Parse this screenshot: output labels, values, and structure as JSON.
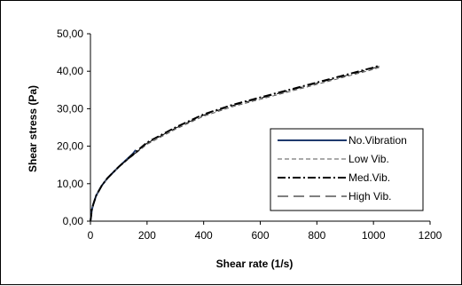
{
  "chart_data": {
    "type": "line",
    "xlabel": "Shear rate (1/s)",
    "ylabel": "Shear stress (Pa)",
    "xlim": [
      0,
      1200
    ],
    "ylim": [
      0,
      50
    ],
    "xticks": [
      "0",
      "200",
      "400",
      "600",
      "800",
      "1000",
      "1200"
    ],
    "yticks": [
      "0,00",
      "10,00",
      "20,00",
      "30,00",
      "40,00",
      "50,00"
    ],
    "grid": false,
    "legend_position": "center-right",
    "series": [
      {
        "name": "No.Vibration",
        "color": "#1f3a6e",
        "dash": "solid",
        "x": [
          0,
          5,
          10,
          20,
          40,
          60,
          100,
          150,
          160
        ],
        "y": [
          0,
          3.0,
          4.5,
          6.8,
          9.5,
          11.5,
          14.5,
          18.0,
          19.0
        ]
      },
      {
        "name": "Low Vib.",
        "color": "#555555",
        "dash": "dashed",
        "x": [
          0,
          5,
          10,
          20,
          40,
          60,
          100,
          150,
          200,
          300,
          400,
          500,
          600,
          700,
          800,
          900,
          1000,
          1020
        ],
        "y": [
          0,
          3.0,
          4.5,
          6.8,
          9.5,
          11.5,
          14.5,
          17.5,
          20.5,
          24.5,
          28.0,
          30.5,
          32.5,
          34.5,
          36.5,
          38.5,
          40.5,
          41.0
        ]
      },
      {
        "name": "Med.Vib.",
        "color": "#000000",
        "dash": "dashdot",
        "x": [
          0,
          5,
          10,
          20,
          40,
          60,
          100,
          150,
          200,
          300,
          400,
          500,
          600,
          700,
          800,
          900,
          1000,
          1020
        ],
        "y": [
          0,
          3.0,
          4.5,
          6.8,
          9.5,
          11.5,
          14.5,
          17.8,
          21.0,
          25.0,
          28.5,
          31.0,
          33.0,
          35.0,
          37.0,
          39.0,
          41.0,
          41.5
        ]
      },
      {
        "name": "High Vib.",
        "color": "#000000",
        "dash": "longdash",
        "x": [
          0,
          5,
          10,
          20,
          40,
          60,
          100,
          150,
          200,
          300,
          400,
          500,
          600,
          700,
          800,
          900,
          1000,
          1020
        ],
        "y": [
          0,
          3.0,
          4.5,
          6.8,
          9.5,
          11.5,
          14.5,
          17.6,
          20.8,
          24.8,
          28.3,
          30.8,
          32.8,
          34.8,
          36.8,
          38.8,
          40.8,
          41.3
        ]
      }
    ]
  }
}
